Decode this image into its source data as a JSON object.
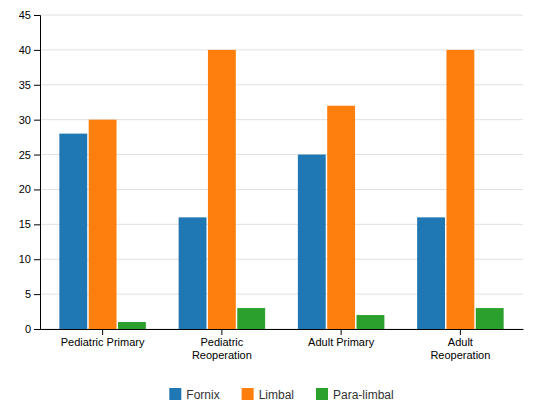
{
  "chart_data": {
    "type": "bar",
    "categories": [
      "Pediatric Primary",
      "Pediatric\nReoperation",
      "Adult Primary",
      "Adult\nReoperation"
    ],
    "series": [
      {
        "name": "Fornix",
        "values": [
          28,
          16,
          25,
          16
        ]
      },
      {
        "name": "Limbal",
        "values": [
          30,
          40,
          32,
          40
        ]
      },
      {
        "name": "Para-limbal",
        "values": [
          1,
          3,
          2,
          3
        ]
      }
    ],
    "ylim": [
      0,
      45
    ],
    "yticks": [
      0,
      5,
      10,
      15,
      20,
      25,
      30,
      35,
      40,
      45
    ],
    "grid": true,
    "legend": "bottom"
  }
}
